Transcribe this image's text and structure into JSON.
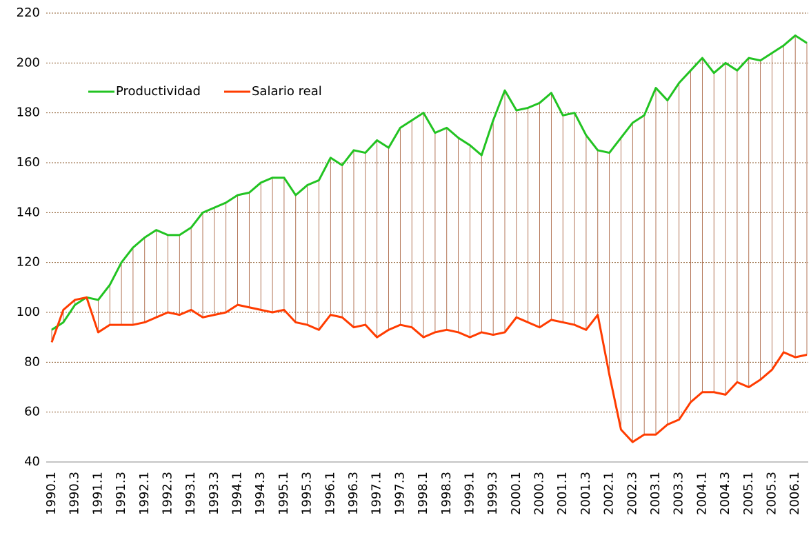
{
  "chart_data": {
    "type": "line",
    "categories": [
      "1990.1",
      null,
      "1990.3",
      null,
      "1991.1",
      null,
      "1991.3",
      null,
      "1992.1",
      null,
      "1992.3",
      null,
      "1993.1",
      null,
      "1993.3",
      null,
      "1994.1",
      null,
      "1994.3",
      null,
      "1995.1",
      null,
      "1995.3",
      null,
      "1996.1",
      null,
      "1996.3",
      null,
      "1997.1",
      null,
      "1997.3",
      null,
      "1998.1",
      null,
      "1998.3",
      null,
      "1999.1",
      null,
      "1999.3",
      null,
      "2000.1",
      null,
      "2000.3",
      null,
      "2001.1",
      null,
      "2001.3",
      null,
      "2002.1",
      null,
      "2002.3",
      null,
      "2003.1",
      null,
      "2003.3",
      null,
      "2004.1",
      null,
      "2004.3",
      null,
      "2005.1",
      null,
      "2005.3",
      null,
      "2006.1",
      null
    ],
    "series": [
      {
        "name": "Productividad",
        "color": "#22c322",
        "values": [
          93,
          96,
          103,
          106,
          105,
          111,
          120,
          126,
          130,
          133,
          131,
          131,
          134,
          140,
          142,
          144,
          147,
          148,
          152,
          154,
          154,
          147,
          151,
          153,
          162,
          159,
          165,
          164,
          169,
          166,
          174,
          177,
          180,
          172,
          174,
          170,
          167,
          163,
          177,
          189,
          181,
          182,
          184,
          188,
          179,
          180,
          171,
          165,
          164,
          170,
          176,
          179,
          190,
          185,
          192,
          197,
          202,
          196,
          200,
          197,
          202,
          201,
          204,
          207,
          211,
          208
        ]
      },
      {
        "name": "Salario real",
        "color": "#ff3c00",
        "values": [
          88,
          101,
          105,
          106,
          92,
          95,
          95,
          95,
          96,
          98,
          100,
          99,
          101,
          98,
          99,
          100,
          103,
          102,
          101,
          100,
          101,
          96,
          95,
          93,
          99,
          98,
          94,
          95,
          90,
          93,
          95,
          94,
          90,
          92,
          93,
          92,
          90,
          92,
          91,
          92,
          98,
          96,
          94,
          97,
          96,
          95,
          93,
          99,
          75,
          53,
          48,
          51,
          51,
          55,
          57,
          64,
          68,
          68,
          67,
          72,
          70,
          73,
          77,
          84,
          82,
          83
        ]
      }
    ],
    "ylim": [
      40,
      220
    ],
    "yticks": [
      40,
      60,
      80,
      100,
      120,
      140,
      160,
      180,
      200,
      220
    ],
    "grid": true,
    "drop_lines": true,
    "legend": "upper left"
  }
}
